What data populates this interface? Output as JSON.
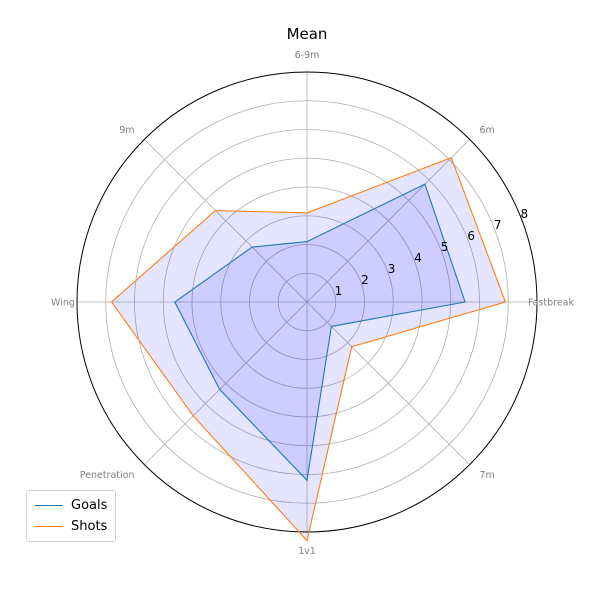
{
  "chart_data": {
    "type": "radar",
    "title": "Mean",
    "categories": [
      "Fastbreak",
      "6m",
      "6-9m",
      "9m",
      "Wing",
      "Penetration",
      "1v1",
      "7m"
    ],
    "rticks": [
      "1",
      "2",
      "3",
      "4",
      "5",
      "6",
      "7",
      "8"
    ],
    "rlim": [
      0,
      8
    ],
    "grid": true,
    "legend": "lower-left",
    "series": [
      {
        "name": "Goals",
        "values": [
          5.5,
          5.8,
          2.1,
          2.7,
          4.6,
          4.3,
          6.2,
          1.2
        ],
        "color": "#1f77b4"
      },
      {
        "name": "Shots",
        "values": [
          6.9,
          7.1,
          3.1,
          4.5,
          6.8,
          5.6,
          8.3,
          2.2
        ],
        "color": "#ff7f0e"
      }
    ],
    "fill_color": "#0000ff"
  }
}
